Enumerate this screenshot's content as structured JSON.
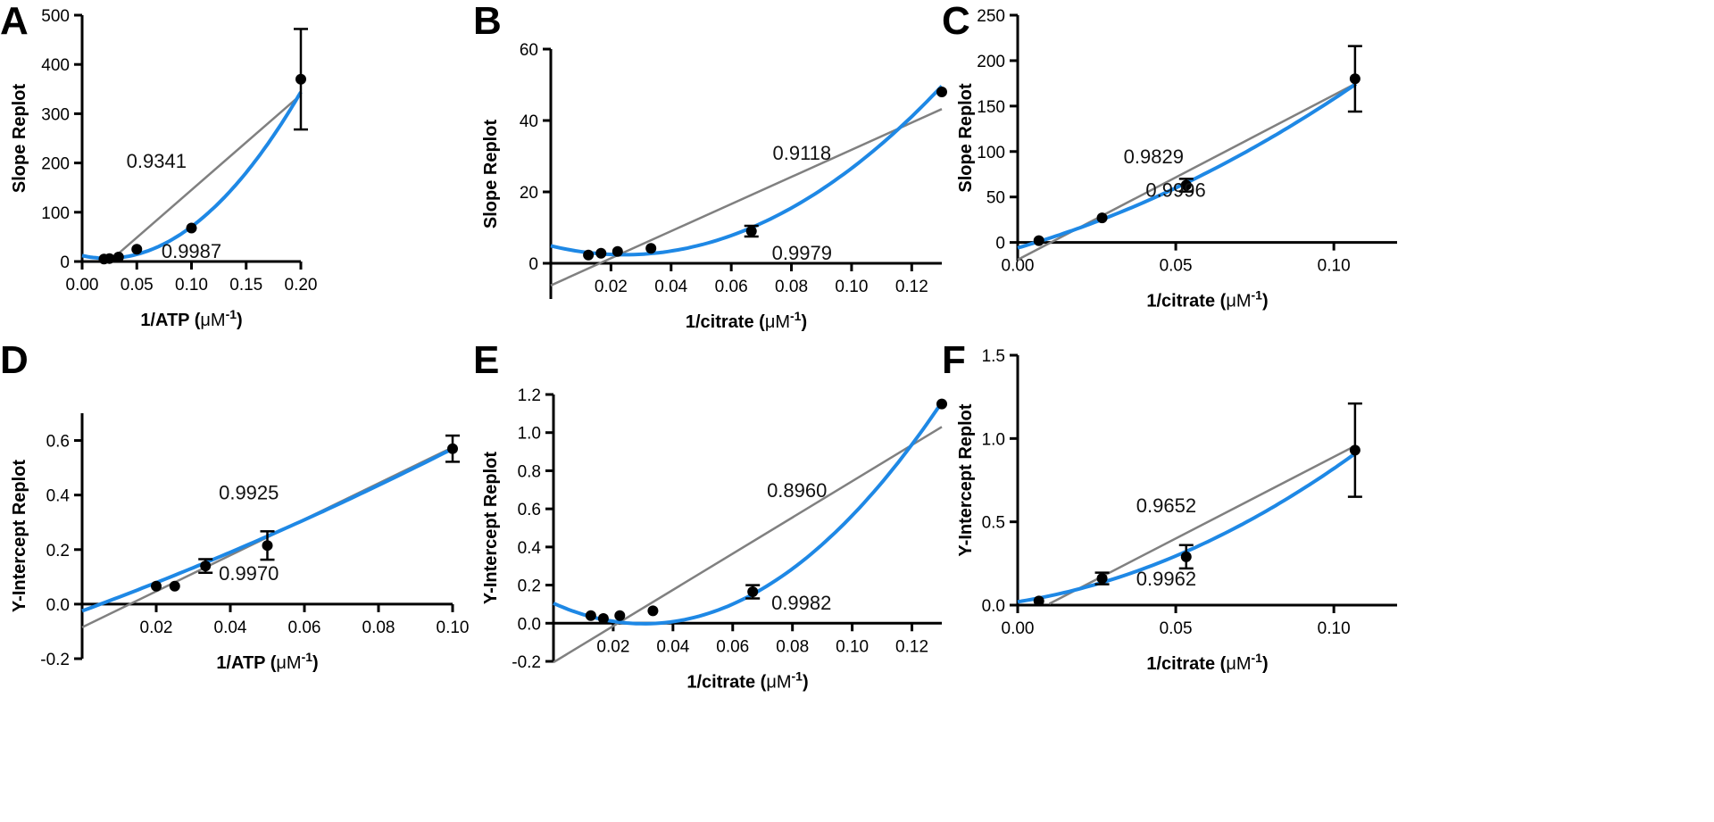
{
  "colors": {
    "quadratic_fit": "#1e88e5",
    "linear_fit": "#808080",
    "points": "#000000"
  },
  "chart_data": [
    {
      "panel": "A",
      "type": "scatter",
      "xlabel": "1/ATP (",
      "xunit": "μM",
      "xunit_sup": "-1",
      "xunit_close": ")",
      "ylabel": "Slope Replot",
      "xlim": [
        0,
        0.2
      ],
      "ylim": [
        0,
        500
      ],
      "xticks": [
        0,
        0.05,
        0.1,
        0.15,
        0.2
      ],
      "xtick_labels": [
        "0.00",
        "0.05",
        "0.10",
        "0.15",
        "0.20"
      ],
      "yticks": [
        0,
        100,
        200,
        300,
        400,
        500
      ],
      "ytick_labels": [
        "0",
        "100",
        "200",
        "300",
        "400",
        "500"
      ],
      "points": [
        {
          "x": 0.02,
          "y": 5,
          "err": 0
        },
        {
          "x": 0.025,
          "y": 6,
          "err": 0
        },
        {
          "x": 0.0333,
          "y": 9,
          "err": 0
        },
        {
          "x": 0.05,
          "y": 25,
          "err": 0
        },
        {
          "x": 0.1,
          "y": 68,
          "err": 0
        },
        {
          "x": 0.2,
          "y": 370,
          "err": 102
        }
      ],
      "linear_fit": {
        "slope": 1932,
        "intercept": -48,
        "x_range": [
          0.025,
          0.2
        ]
      },
      "quadratic_fit": {
        "a": 12,
        "b": -487,
        "c": 10736,
        "x_range": [
          0,
          0.2
        ]
      },
      "annotations": [
        {
          "text": "0.9341",
          "x": 0.068,
          "y": 205
        },
        {
          "text": "0.9987",
          "x": 0.1,
          "y": 22
        }
      ]
    },
    {
      "panel": "B",
      "type": "scatter",
      "xlabel": "1/citrate (",
      "xunit": "μM",
      "xunit_sup": "-1",
      "xunit_close": ")",
      "ylabel": "Slope Replot",
      "xlim": [
        0,
        0.13
      ],
      "ylim": [
        -10,
        60
      ],
      "xticks": [
        0.02,
        0.04,
        0.06,
        0.08,
        0.1,
        0.12
      ],
      "xtick_labels": [
        "0.02",
        "0.04",
        "0.06",
        "0.08",
        "0.10",
        "0.12"
      ],
      "yticks": [
        0,
        20,
        40,
        60
      ],
      "ytick_labels": [
        "0",
        "20",
        "40",
        "60"
      ],
      "points": [
        {
          "x": 0.0125,
          "y": 2.3,
          "err": 0
        },
        {
          "x": 0.0167,
          "y": 2.8,
          "err": 0
        },
        {
          "x": 0.0222,
          "y": 3.3,
          "err": 0
        },
        {
          "x": 0.0333,
          "y": 4.2,
          "err": 0
        },
        {
          "x": 0.0667,
          "y": 9.0,
          "err": 1.5
        },
        {
          "x": 0.13,
          "y": 48,
          "err": 0
        }
      ],
      "linear_fit": {
        "slope": 380,
        "intercept": -6.2,
        "x_range": [
          0,
          0.13
        ]
      },
      "quadratic_fit": {
        "a": 4.9,
        "b": -206,
        "c": 4231,
        "x_range": [
          0,
          0.13
        ]
      },
      "annotations": [
        {
          "text": "0.9118",
          "x": 0.0835,
          "y": 31
        },
        {
          "text": "0.9979",
          "x": 0.0835,
          "y": 3
        }
      ]
    },
    {
      "panel": "C",
      "type": "scatter",
      "xlabel": "1/citrate (",
      "xunit": "μM",
      "xunit_sup": "-1",
      "xunit_close": ")",
      "ylabel": "Slope Replot",
      "xlim": [
        0,
        0.12
      ],
      "ylim": [
        -20,
        250
      ],
      "xticks": [
        0,
        0.05,
        0.1
      ],
      "xtick_labels": [
        "0.00",
        "0.05",
        "0.10"
      ],
      "yticks": [
        0,
        50,
        100,
        150,
        200,
        250
      ],
      "ytick_labels": [
        "0",
        "50",
        "100",
        "150",
        "200",
        "250"
      ],
      "points": [
        {
          "x": 0.0067,
          "y": 2,
          "err": 0
        },
        {
          "x": 0.0267,
          "y": 27,
          "err": 0
        },
        {
          "x": 0.0533,
          "y": 63,
          "err": 7
        },
        {
          "x": 0.1067,
          "y": 180,
          "err": 36
        }
      ],
      "linear_fit": {
        "slope": 1812,
        "intercept": -19,
        "x_range": [
          0,
          0.107
        ]
      },
      "quadratic_fit": {
        "a": -6,
        "b": 1000,
        "c": 6400,
        "x_range": [
          0,
          0.107
        ]
      },
      "annotations": [
        {
          "text": "0.9829",
          "x": 0.043,
          "y": 95
        },
        {
          "text": "0.9996",
          "x": 0.05,
          "y": 58
        }
      ]
    },
    {
      "panel": "D",
      "type": "scatter",
      "xlabel": "1/ATP (",
      "xunit": "μM",
      "xunit_sup": "-1",
      "xunit_close": ")",
      "ylabel": "Y-Intercept Replot",
      "xlim": [
        0,
        0.1
      ],
      "ylim": [
        -0.2,
        0.7
      ],
      "xticks": [
        0.02,
        0.04,
        0.06,
        0.08,
        0.1
      ],
      "xtick_labels": [
        "0.02",
        "0.04",
        "0.06",
        "0.08",
        "0.10"
      ],
      "yticks": [
        -0.2,
        0,
        0.2,
        0.4,
        0.6
      ],
      "ytick_labels": [
        "-0.2",
        "0.0",
        "0.2",
        "0.4",
        "0.6"
      ],
      "points": [
        {
          "x": 0.02,
          "y": 0.066,
          "err": 0
        },
        {
          "x": 0.025,
          "y": 0.066,
          "err": 0
        },
        {
          "x": 0.0333,
          "y": 0.14,
          "err": 0.025
        },
        {
          "x": 0.05,
          "y": 0.215,
          "err": 0.052
        },
        {
          "x": 0.1,
          "y": 0.57,
          "err": 0.048
        }
      ],
      "linear_fit": {
        "slope": 6.6,
        "intercept": -0.085,
        "x_range": [
          0,
          0.1
        ]
      },
      "quadratic_fit": {
        "a": -0.025,
        "b": 5.0,
        "c": 9.5,
        "x_range": [
          0,
          0.1
        ]
      },
      "annotations": [
        {
          "text": "0.9925",
          "x": 0.045,
          "y": 0.41
        },
        {
          "text": "0.9970",
          "x": 0.045,
          "y": 0.115
        }
      ]
    },
    {
      "panel": "E",
      "type": "scatter",
      "xlabel": "1/citrate (",
      "xunit": "μM",
      "xunit_sup": "-1",
      "xunit_close": ")",
      "ylabel": "Y-Intercept Replot",
      "xlim": [
        0,
        0.13
      ],
      "ylim": [
        -0.2,
        1.2
      ],
      "xticks": [
        0.02,
        0.04,
        0.06,
        0.08,
        0.1,
        0.12
      ],
      "xtick_labels": [
        "0.02",
        "0.04",
        "0.06",
        "0.08",
        "0.10",
        "0.12"
      ],
      "yticks": [
        -0.2,
        0,
        0.2,
        0.4,
        0.6,
        0.8,
        1.0,
        1.2
      ],
      "ytick_labels": [
        "-0.2",
        "0.0",
        "0.2",
        "0.4",
        "0.6",
        "0.8",
        "1.0",
        "1.2"
      ],
      "points": [
        {
          "x": 0.0125,
          "y": 0.04,
          "err": 0
        },
        {
          "x": 0.0167,
          "y": 0.025,
          "err": 0
        },
        {
          "x": 0.0222,
          "y": 0.04,
          "err": 0
        },
        {
          "x": 0.0333,
          "y": 0.065,
          "err": 0
        },
        {
          "x": 0.0667,
          "y": 0.165,
          "err": 0.035
        },
        {
          "x": 0.13,
          "y": 1.15,
          "err": 0
        }
      ],
      "linear_fit": {
        "slope": 9.5,
        "intercept": -0.205,
        "x_range": [
          0,
          0.13
        ]
      },
      "quadratic_fit": {
        "a": 0.105,
        "b": -7.1,
        "c": 117,
        "x_range": [
          0,
          0.13
        ]
      },
      "annotations": [
        {
          "text": "0.8960",
          "x": 0.0815,
          "y": 0.7
        },
        {
          "text": "0.9982",
          "x": 0.083,
          "y": 0.11
        }
      ]
    },
    {
      "panel": "F",
      "type": "scatter",
      "xlabel": "1/citrate (",
      "xunit": "μM",
      "xunit_sup": "-1",
      "xunit_close": ")",
      "ylabel": "Y-Intercept Replot",
      "xlim": [
        0,
        0.12
      ],
      "ylim": [
        0,
        1.5
      ],
      "xticks": [
        0,
        0.05,
        0.1
      ],
      "xtick_labels": [
        "0.00",
        "0.05",
        "0.10"
      ],
      "yticks": [
        0,
        0.5,
        1.0,
        1.5
      ],
      "ytick_labels": [
        "0.0",
        "0.5",
        "1.0",
        "1.5"
      ],
      "points": [
        {
          "x": 0.0067,
          "y": 0.025,
          "err": 0
        },
        {
          "x": 0.0267,
          "y": 0.16,
          "err": 0.035
        },
        {
          "x": 0.0533,
          "y": 0.29,
          "err": 0.07
        },
        {
          "x": 0.1067,
          "y": 0.93,
          "err": 0.28
        }
      ],
      "linear_fit": {
        "slope": 9.8,
        "intercept": -0.09,
        "x_range": [
          0.01,
          0.107
        ]
      },
      "quadratic_fit": {
        "a": 0.02,
        "b": 3.0,
        "c": 50,
        "x_range": [
          0,
          0.107
        ]
      },
      "annotations": [
        {
          "text": "0.9652",
          "x": 0.047,
          "y": 0.6
        },
        {
          "text": "0.9962",
          "x": 0.047,
          "y": 0.16
        }
      ]
    }
  ]
}
